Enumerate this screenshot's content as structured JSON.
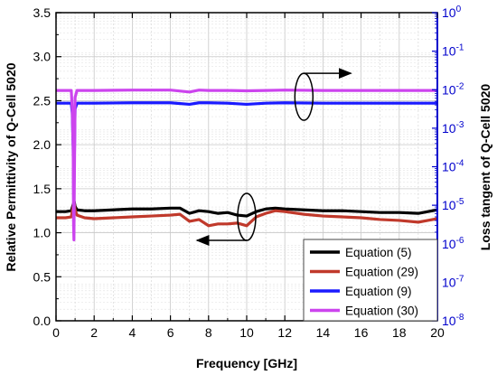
{
  "chart_data": {
    "type": "line",
    "xlabel": "Frequency [GHz]",
    "ylabel_left": "Relative Permittivity of Q-Cell 5020",
    "ylabel_right": "Loss tangent of Q-Cell 5020",
    "xlim": [
      0,
      20
    ],
    "ylim_left": [
      0,
      3.5
    ],
    "ylim_right_log10": [
      -8,
      0
    ],
    "right_axis_scale": "log",
    "x_ticks": [
      "0",
      "2",
      "4",
      "6",
      "8",
      "10",
      "12",
      "14",
      "16",
      "18",
      "20"
    ],
    "y_left_ticks": [
      "0.0",
      "0.5",
      "1.0",
      "1.5",
      "2.0",
      "2.5",
      "3.0",
      "3.5"
    ],
    "y_right_ticks": [
      {
        "base": "10",
        "exp": "-8"
      },
      {
        "base": "10",
        "exp": "-7"
      },
      {
        "base": "10",
        "exp": "-6"
      },
      {
        "base": "10",
        "exp": "-5"
      },
      {
        "base": "10",
        "exp": "-4"
      },
      {
        "base": "10",
        "exp": "-3"
      },
      {
        "base": "10",
        "exp": "-2"
      },
      {
        "base": "10",
        "exp": "-1"
      },
      {
        "base": "10",
        "exp": "0"
      }
    ],
    "grid": true,
    "legend_position": "bottom-right",
    "colors": {
      "left_axis": "#000000",
      "right_axis": "#0000cc",
      "grid": "#c8c8c8"
    },
    "series": [
      {
        "name": "Equation (5)",
        "axis": "left",
        "color": "#000000",
        "x": [
          0,
          0.5,
          0.8,
          0.9,
          0.95,
          1.0,
          1.1,
          1.5,
          2,
          3,
          4,
          5,
          6,
          6.5,
          7,
          7.5,
          8,
          8.5,
          9,
          9.5,
          10,
          10.5,
          11,
          11.5,
          12,
          13,
          14,
          15,
          16,
          17,
          18,
          19,
          19.5,
          20
        ],
        "y": [
          1.24,
          1.24,
          1.25,
          1.32,
          1.36,
          1.3,
          1.26,
          1.25,
          1.25,
          1.26,
          1.27,
          1.27,
          1.28,
          1.28,
          1.22,
          1.25,
          1.24,
          1.22,
          1.23,
          1.2,
          1.19,
          1.24,
          1.27,
          1.28,
          1.27,
          1.26,
          1.25,
          1.25,
          1.24,
          1.23,
          1.23,
          1.22,
          1.24,
          1.26
        ]
      },
      {
        "name": "Equation (29)",
        "axis": "left",
        "color": "#c0392b",
        "x": [
          0,
          0.5,
          0.8,
          0.9,
          0.95,
          1.0,
          1.1,
          1.5,
          2,
          3,
          4,
          5,
          6,
          6.5,
          7,
          7.5,
          8,
          8.5,
          9,
          9.5,
          10,
          10.5,
          11,
          11.5,
          12,
          13,
          14,
          15,
          16,
          17,
          18,
          19,
          19.5,
          20
        ],
        "y": [
          1.17,
          1.17,
          1.18,
          1.3,
          1.34,
          1.26,
          1.2,
          1.17,
          1.16,
          1.17,
          1.18,
          1.19,
          1.2,
          1.21,
          1.13,
          1.15,
          1.08,
          1.1,
          1.1,
          1.11,
          1.08,
          1.18,
          1.22,
          1.25,
          1.24,
          1.21,
          1.19,
          1.18,
          1.17,
          1.15,
          1.14,
          1.12,
          1.14,
          1.16
        ]
      },
      {
        "name": "Equation (9)",
        "axis": "right",
        "color": "#1a1aff",
        "x": [
          0,
          0.5,
          0.8,
          0.85,
          0.9,
          0.93,
          0.95,
          1.0,
          1.1,
          1.5,
          2,
          4,
          6,
          7,
          7.5,
          8,
          9,
          10,
          11,
          12,
          14,
          16,
          18,
          20
        ],
        "y_log10": [
          -2.35,
          -2.35,
          -2.35,
          -2.6,
          -3.5,
          -5.0,
          -4.2,
          -2.5,
          -2.35,
          -2.35,
          -2.35,
          -2.34,
          -2.34,
          -2.38,
          -2.34,
          -2.34,
          -2.35,
          -2.38,
          -2.35,
          -2.34,
          -2.35,
          -2.35,
          -2.35,
          -2.35
        ]
      },
      {
        "name": "Equation (30)",
        "axis": "right",
        "color": "#cc44ee",
        "x": [
          0,
          0.5,
          0.8,
          0.85,
          0.9,
          0.92,
          0.94,
          0.96,
          1.0,
          1.1,
          1.5,
          2,
          4,
          6,
          7,
          7.5,
          8,
          9,
          10,
          11,
          12,
          14,
          16,
          18,
          20
        ],
        "y_log10": [
          -2.02,
          -2.02,
          -2.02,
          -2.5,
          -3.5,
          -5.5,
          -5.9,
          -4.5,
          -2.2,
          -2.02,
          -2.02,
          -2.02,
          -2.01,
          -2.01,
          -2.06,
          -2.01,
          -2.02,
          -2.02,
          -2.03,
          -2.02,
          -2.01,
          -2.02,
          -2.02,
          -2.02,
          -2.02
        ]
      }
    ],
    "annotations": [
      {
        "type": "ellipse-arrow",
        "target_axis": "left",
        "direction": "left"
      },
      {
        "type": "ellipse-arrow",
        "target_axis": "right",
        "direction": "right"
      }
    ]
  }
}
